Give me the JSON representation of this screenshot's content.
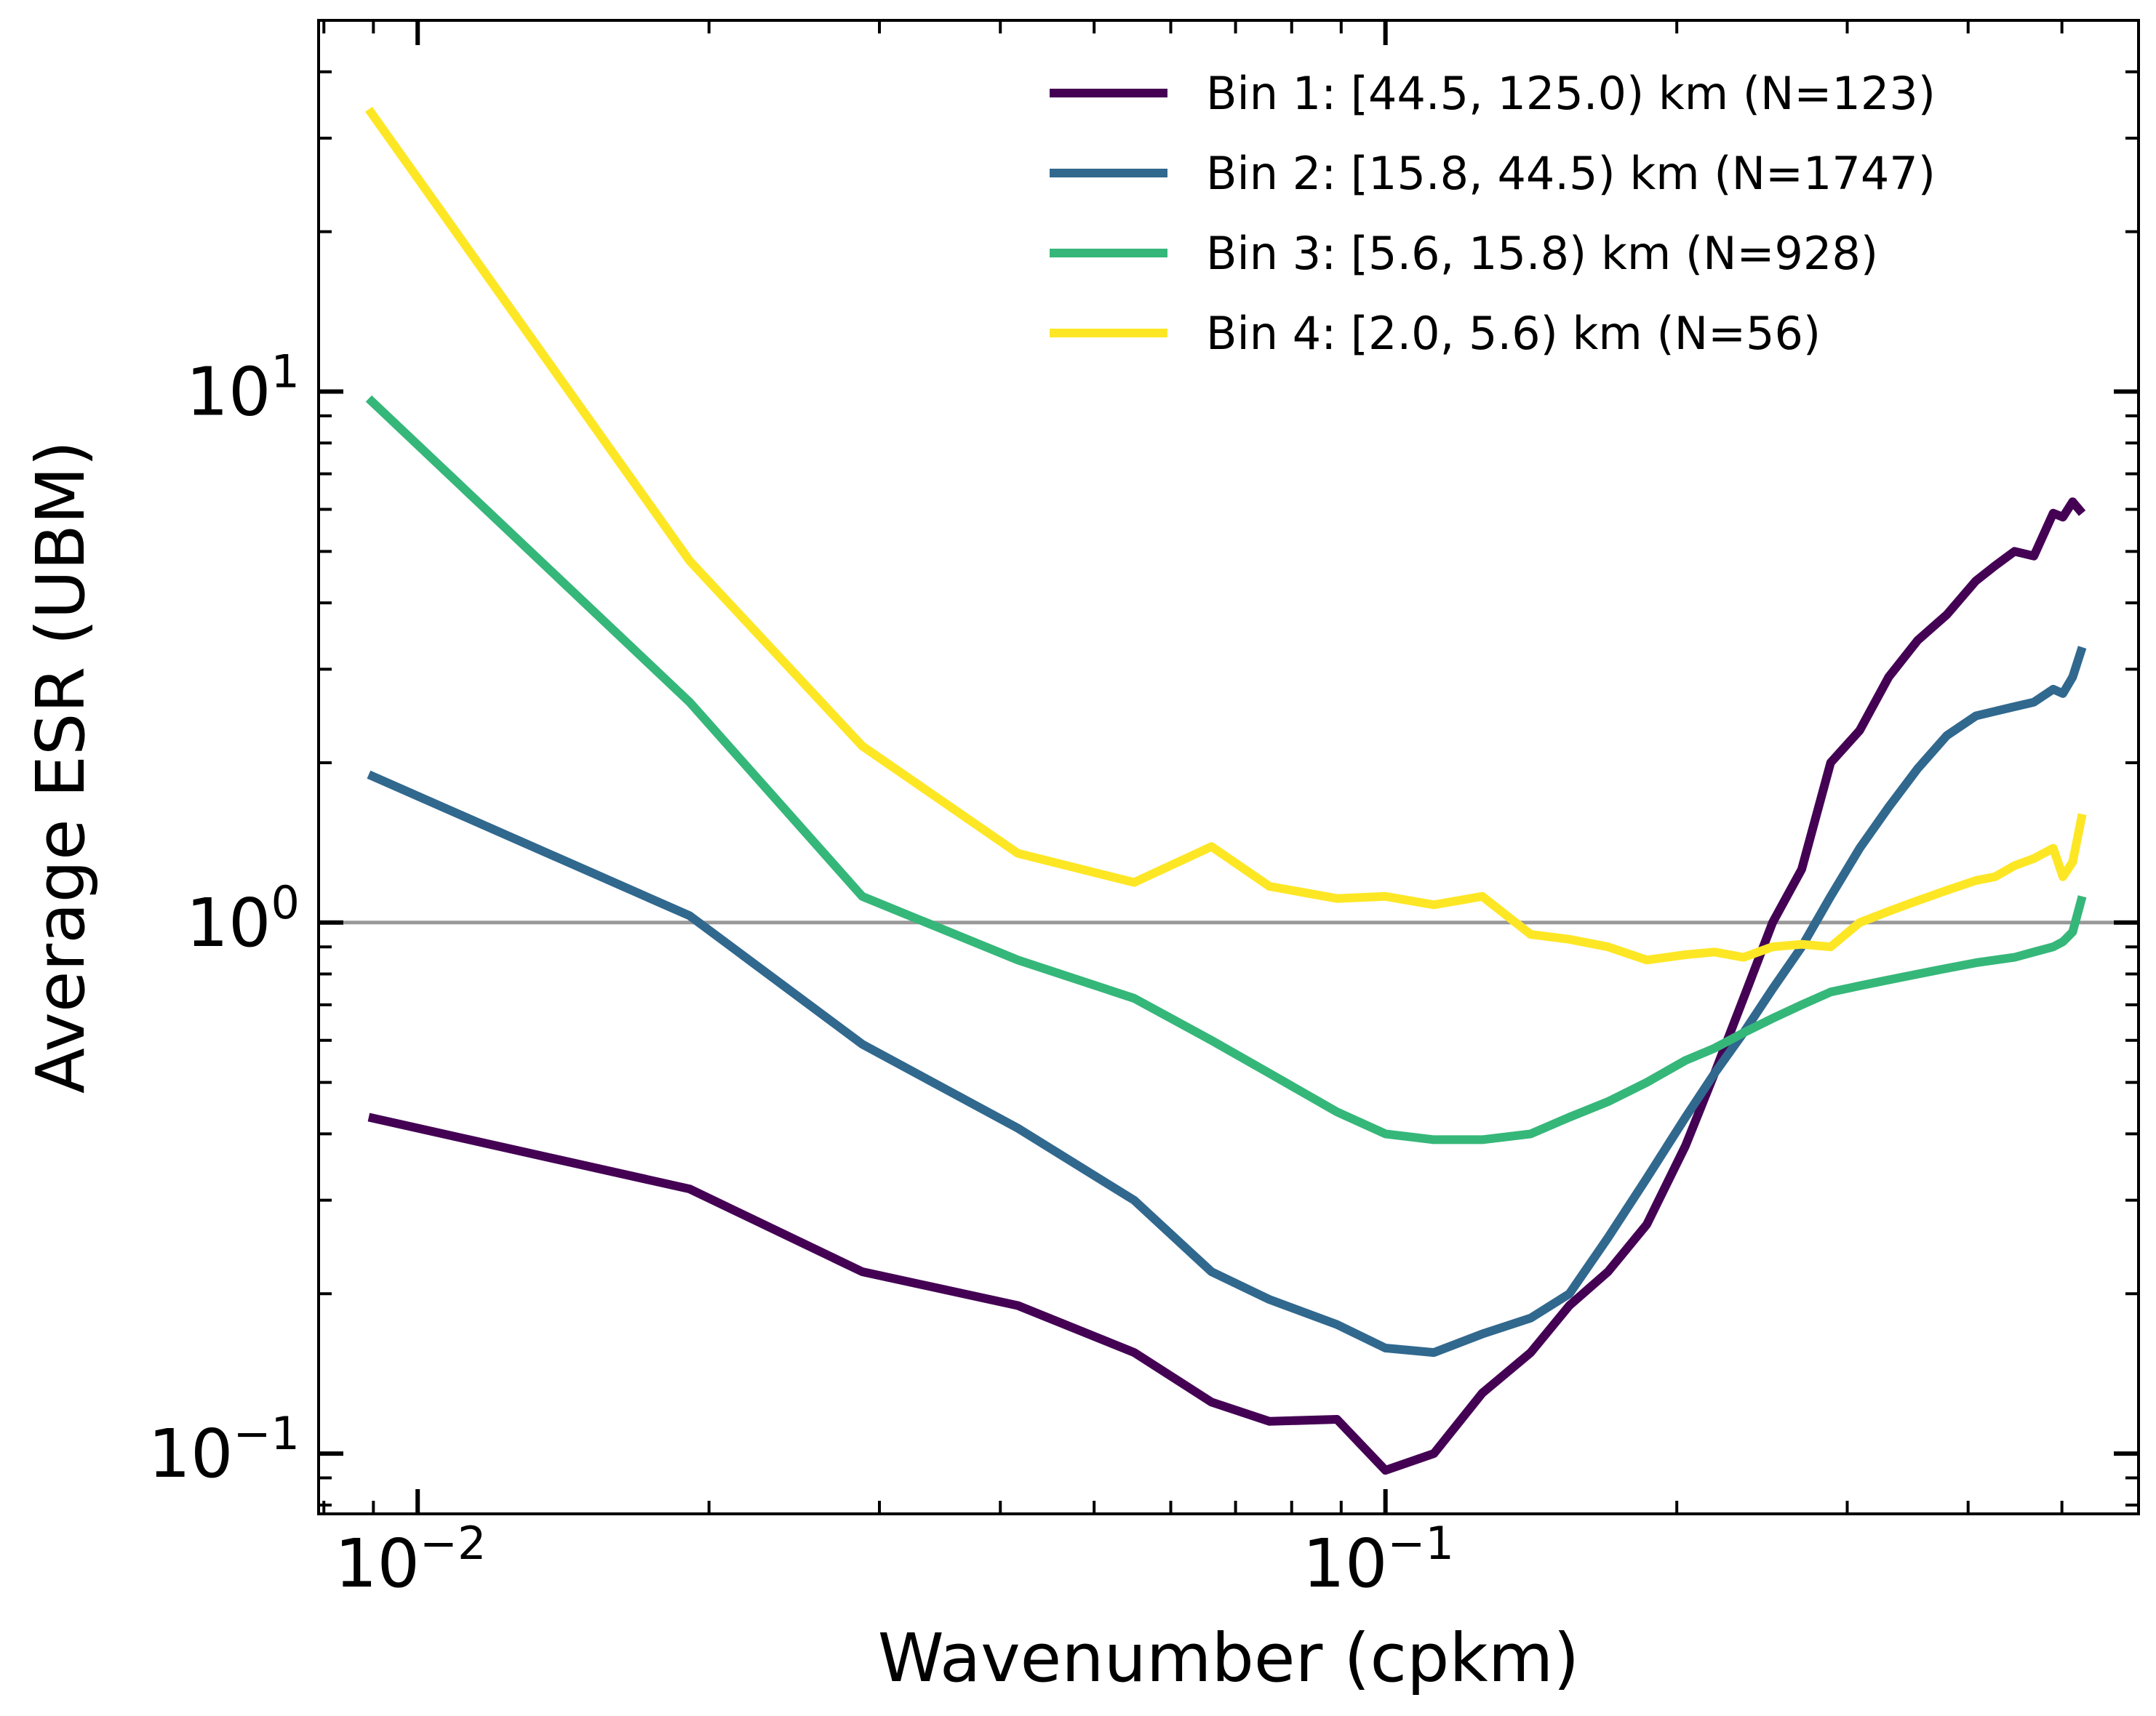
{
  "chart_data": {
    "type": "line",
    "xlabel": "Wavenumber (cpkm)",
    "ylabel": "Average ESR (UBM)",
    "xscale": "log",
    "yscale": "log",
    "xlim": [
      0.0079,
      0.6
    ],
    "ylim": [
      0.077,
      50
    ],
    "x_ticks": [
      {
        "value": 0.01,
        "base": "10",
        "exp": "−2"
      },
      {
        "value": 0.1,
        "base": "10",
        "exp": "−1"
      }
    ],
    "y_ticks": [
      {
        "value": 0.1,
        "base": "10",
        "exp": "−1"
      },
      {
        "value": 1,
        "base": "10",
        "exp": "0"
      },
      {
        "value": 10,
        "base": "10",
        "exp": "1"
      }
    ],
    "reference_line": {
      "y": 1,
      "color": "#999999"
    },
    "grid": false,
    "legend_position": "top-right",
    "series": [
      {
        "name": "Bin 1: [44.5, 125.0) km (N=123)",
        "color": "#440154",
        "x": [
          0.0089,
          0.0191,
          0.0288,
          0.0417,
          0.055,
          0.0661,
          0.0759,
          0.0891,
          0.1,
          0.1122,
          0.1259,
          0.1413,
          0.1549,
          0.1698,
          0.1862,
          0.2042,
          0.2188,
          0.2344,
          0.2512,
          0.2692,
          0.2884,
          0.309,
          0.3311,
          0.3548,
          0.3802,
          0.4074,
          0.4266,
          0.4467,
          0.4677,
          0.4898,
          0.5012,
          0.5129,
          0.5248
        ],
        "y": [
          0.43,
          0.315,
          0.22,
          0.19,
          0.155,
          0.125,
          0.115,
          0.116,
          0.093,
          0.1,
          0.13,
          0.155,
          0.19,
          0.22,
          0.27,
          0.38,
          0.52,
          0.72,
          1.0,
          1.26,
          2.0,
          2.3,
          2.9,
          3.4,
          3.8,
          4.4,
          4.7,
          5.0,
          4.9,
          5.9,
          5.8,
          6.2,
          5.9
        ]
      },
      {
        "name": "Bin 2: [15.8, 44.5) km (N=1747)",
        "color": "#31688e",
        "x": [
          0.0089,
          0.0191,
          0.0288,
          0.0417,
          0.055,
          0.0661,
          0.0759,
          0.0891,
          0.1,
          0.1122,
          0.1259,
          0.1413,
          0.1549,
          0.1698,
          0.1862,
          0.2042,
          0.2188,
          0.2344,
          0.2512,
          0.2692,
          0.2884,
          0.309,
          0.3311,
          0.3548,
          0.3802,
          0.4074,
          0.4266,
          0.4467,
          0.4677,
          0.4898,
          0.5012,
          0.5129,
          0.5248
        ],
        "y": [
          1.9,
          1.03,
          0.59,
          0.41,
          0.3,
          0.22,
          0.195,
          0.175,
          0.158,
          0.155,
          0.168,
          0.18,
          0.2,
          0.255,
          0.33,
          0.43,
          0.52,
          0.62,
          0.75,
          0.9,
          1.12,
          1.38,
          1.65,
          1.95,
          2.25,
          2.45,
          2.5,
          2.55,
          2.6,
          2.75,
          2.7,
          2.9,
          3.3
        ]
      },
      {
        "name": "Bin 3: [5.6, 15.8) km (N=928)",
        "color": "#35b779",
        "x": [
          0.0089,
          0.0191,
          0.0288,
          0.0417,
          0.055,
          0.0661,
          0.0759,
          0.0891,
          0.1,
          0.1122,
          0.1259,
          0.1413,
          0.1549,
          0.1698,
          0.1862,
          0.2042,
          0.2188,
          0.2344,
          0.2512,
          0.2692,
          0.2884,
          0.309,
          0.3311,
          0.3548,
          0.3802,
          0.4074,
          0.4266,
          0.4467,
          0.4677,
          0.4898,
          0.5012,
          0.5129,
          0.5248
        ],
        "y": [
          9.7,
          2.6,
          1.12,
          0.85,
          0.72,
          0.6,
          0.52,
          0.44,
          0.4,
          0.39,
          0.39,
          0.4,
          0.43,
          0.46,
          0.5,
          0.55,
          0.58,
          0.62,
          0.66,
          0.7,
          0.74,
          0.76,
          0.78,
          0.8,
          0.82,
          0.84,
          0.85,
          0.86,
          0.88,
          0.9,
          0.92,
          0.96,
          1.12
        ]
      },
      {
        "name": "Bin 4: [2.0, 5.6) km (N=56)",
        "color": "#fde725",
        "x": [
          0.0089,
          0.0191,
          0.0288,
          0.0417,
          0.055,
          0.0661,
          0.0759,
          0.0891,
          0.1,
          0.1122,
          0.1259,
          0.1413,
          0.1549,
          0.1698,
          0.1862,
          0.2042,
          0.2188,
          0.2344,
          0.2512,
          0.2692,
          0.2884,
          0.309,
          0.3311,
          0.3548,
          0.3802,
          0.4074,
          0.4266,
          0.4467,
          0.4677,
          0.4898,
          0.5012,
          0.5129,
          0.5248
        ],
        "y": [
          34,
          4.8,
          2.15,
          1.35,
          1.19,
          1.39,
          1.17,
          1.11,
          1.12,
          1.08,
          1.12,
          0.95,
          0.93,
          0.9,
          0.85,
          0.87,
          0.88,
          0.86,
          0.9,
          0.91,
          0.9,
          1.0,
          1.05,
          1.1,
          1.15,
          1.2,
          1.22,
          1.28,
          1.32,
          1.38,
          1.22,
          1.3,
          1.6
        ]
      }
    ]
  }
}
